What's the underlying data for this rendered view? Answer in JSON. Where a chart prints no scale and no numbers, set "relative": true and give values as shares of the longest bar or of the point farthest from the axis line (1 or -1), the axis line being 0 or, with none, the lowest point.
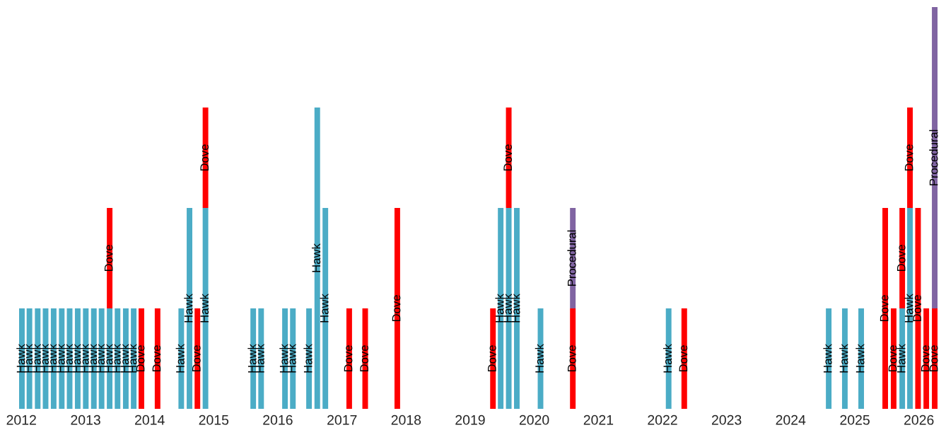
{
  "chart_data": {
    "type": "bar",
    "stacked": true,
    "relative": true,
    "legend": false,
    "grid": false,
    "x": [
      "2012-01-04",
      "2012-02-16",
      "2012-04-03",
      "2012-05-18",
      "2012-07-03",
      "2012-08-18",
      "2012-10-02",
      "2012-11-17",
      "2013-01-02",
      "2013-02-17",
      "2013-04-02",
      "2013-05-18",
      "2013-07-02",
      "2013-08-18",
      "2013-10-02",
      "2013-11-15",
      "2014-02-15",
      "2014-06-30",
      "2014-08-16",
      "2014-09-30",
      "2014-11-15",
      "2015-08-14",
      "2015-09-28",
      "2016-02-11",
      "2016-03-27",
      "2016-06-27",
      "2016-08-13",
      "2016-09-28",
      "2017-02-11",
      "2017-05-13",
      "2017-11-12",
      "2019-05-11",
      "2019-06-24",
      "2019-08-09",
      "2019-09-24",
      "2020-02-06",
      "2020-08-08",
      "2022-02-05",
      "2022-05-05",
      "2024-08-05",
      "2024-11-05",
      "2025-02-06",
      "2025-06-23",
      "2025-08-10",
      "2025-09-28",
      "2025-11-11",
      "2025-12-27",
      "2026-02-12",
      "2026-04-01"
    ],
    "xlim": [
      "2011-12-19",
      "2026-04-17"
    ],
    "xticks": [
      "2012",
      "2013",
      "2014",
      "2015",
      "2016",
      "2017",
      "2018",
      "2019",
      "2020",
      "2021",
      "2022",
      "2023",
      "2024",
      "2025",
      "2026"
    ],
    "series": [
      {
        "name": "Hawk",
        "color": "#4bacc6",
        "values": [
          0.25,
          0.25,
          0.25,
          0.25,
          0.25,
          0.25,
          0.25,
          0.25,
          0.25,
          0.25,
          0.25,
          0.25,
          0.25,
          0.25,
          0.25,
          null,
          null,
          0.25,
          0.5,
          null,
          0.5,
          0.25,
          0.25,
          0.25,
          0.25,
          0.25,
          0.75,
          0.5,
          null,
          null,
          null,
          null,
          0.5,
          0.5,
          0.5,
          0.25,
          null,
          0.25,
          null,
          0.25,
          0.25,
          0.25,
          null,
          null,
          0.25,
          0.5,
          null,
          null,
          null
        ]
      },
      {
        "name": "Dove",
        "color": "#ff0000",
        "values": [
          null,
          null,
          null,
          null,
          null,
          null,
          null,
          null,
          null,
          null,
          null,
          0.25,
          null,
          null,
          null,
          0.25,
          0.25,
          null,
          null,
          0.25,
          0.25,
          null,
          null,
          null,
          null,
          null,
          null,
          null,
          0.25,
          0.25,
          0.5,
          0.25,
          null,
          0.25,
          null,
          null,
          0.25,
          null,
          0.25,
          null,
          null,
          null,
          0.5,
          0.25,
          0.25,
          0.25,
          0.5,
          0.25,
          0.25
        ]
      },
      {
        "name": "Procedural",
        "color": "#8064a2",
        "values": [
          null,
          null,
          null,
          null,
          null,
          null,
          null,
          null,
          null,
          null,
          null,
          null,
          null,
          null,
          null,
          null,
          null,
          null,
          null,
          null,
          null,
          null,
          null,
          null,
          null,
          null,
          null,
          null,
          null,
          null,
          null,
          null,
          null,
          null,
          null,
          null,
          0.25,
          null,
          null,
          null,
          null,
          null,
          null,
          null,
          null,
          null,
          null,
          null,
          0.75
        ]
      }
    ]
  }
}
